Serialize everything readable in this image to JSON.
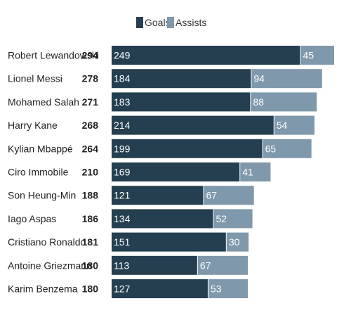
{
  "chart_data": {
    "type": "bar",
    "orientation": "horizontal",
    "stacked": true,
    "categories": [
      "Robert Lewandowski",
      "Lionel Messi",
      "Mohamed Salah",
      "Harry Kane",
      "Kylian Mbappé",
      "Ciro Immobile",
      "Son Heung-Min",
      "Iago Aspas",
      "Cristiano Ronaldo",
      "Antoine Griezmann",
      "Karim Benzema"
    ],
    "totals": [
      294,
      278,
      271,
      268,
      264,
      210,
      188,
      186,
      181,
      180,
      180
    ],
    "series": [
      {
        "name": "Goals",
        "color": "#253f50",
        "values": [
          249,
          184,
          183,
          214,
          199,
          169,
          121,
          134,
          151,
          113,
          127
        ]
      },
      {
        "name": "Assists",
        "color": "#7f98ab",
        "values": [
          45,
          94,
          88,
          54,
          65,
          41,
          67,
          52,
          30,
          67,
          53
        ]
      }
    ],
    "legend_position": "top-center",
    "grid": false,
    "data_labels": true
  }
}
